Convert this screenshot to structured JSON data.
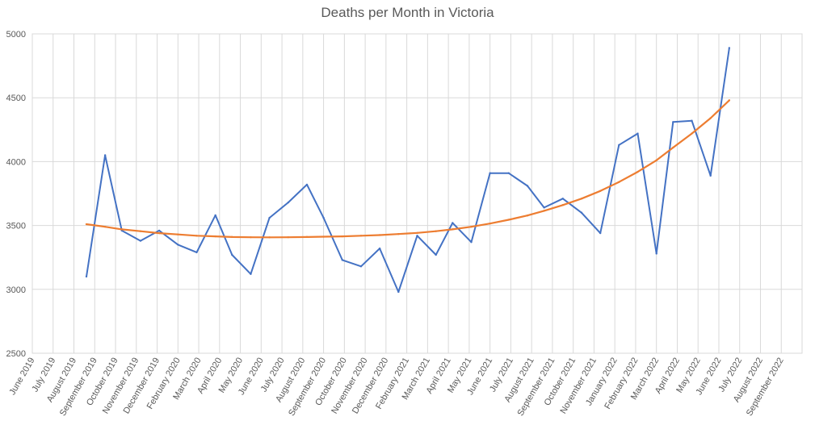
{
  "chart_data": {
    "type": "line",
    "title": "Deaths per Month in Victoria",
    "xlabel": "",
    "ylabel": "",
    "ylim": [
      2500,
      5000
    ],
    "yticks": [
      "2500",
      "3000",
      "3500",
      "4000",
      "4500",
      "5000"
    ],
    "grid": true,
    "categories": [
      "June 2019",
      "July 2019",
      "August 2019",
      "September 2019",
      "October 2019",
      "November 2019",
      "December 2019",
      "February 2020",
      "March 2020",
      "April 2020",
      "May 2020",
      "June 2020",
      "July 2020",
      "August 2020",
      "September 2020",
      "October 2020",
      "November 2020",
      "December 2020",
      "February 2021",
      "March 2021",
      "April 2021",
      "May 2021",
      "June 2021",
      "July 2021",
      "August 2021",
      "September 2021",
      "October 2021",
      "November 2021",
      "January 2022",
      "February 2022",
      "March 2022",
      "April 2022",
      "May 2022",
      "June 2022",
      "July 2022",
      "August 2022",
      "September 2022"
    ],
    "series": [
      {
        "color": "#4472C4",
        "x": [
          2.6,
          3.5,
          4.3,
          5.2,
          6.1,
          7.0,
          7.9,
          8.8,
          9.6,
          10.5,
          11.4,
          12.3,
          13.2,
          14.0,
          14.9,
          15.8,
          16.7,
          17.6,
          18.5,
          19.4,
          20.2,
          21.1,
          22.0,
          22.9,
          23.8,
          24.6,
          25.5,
          26.4,
          27.3,
          28.2,
          29.1,
          30.0,
          30.8,
          31.7,
          32.6,
          33.5,
          34.3
        ],
        "values": [
          3100,
          4050,
          3460,
          3380,
          3460,
          3350,
          3290,
          3580,
          3270,
          3120,
          3560,
          3680,
          3820,
          3560,
          3230,
          3180,
          3320,
          2980,
          3420,
          3270,
          3520,
          3370,
          3910,
          3910,
          3810,
          3640,
          3710,
          3600,
          3440,
          4130,
          4220,
          3280,
          4310,
          4320,
          3890,
          4890,
          null
        ]
      },
      {
        "color": "#ED7D31",
        "x": [
          2.6,
          3.5,
          4.3,
          5.2,
          6.1,
          7.0,
          7.9,
          8.8,
          9.6,
          10.5,
          11.4,
          12.3,
          13.2,
          14.0,
          14.9,
          15.8,
          16.7,
          17.6,
          18.5,
          19.4,
          20.2,
          21.1,
          22.0,
          22.9,
          23.8,
          24.6,
          25.5,
          26.4,
          27.3,
          28.2,
          29.1,
          30.0,
          30.8,
          31.7,
          32.6,
          33.5
        ],
        "values": [
          3510,
          3490,
          3470,
          3455,
          3440,
          3430,
          3420,
          3415,
          3410,
          3408,
          3407,
          3408,
          3410,
          3412,
          3415,
          3420,
          3425,
          3433,
          3442,
          3455,
          3470,
          3490,
          3515,
          3545,
          3578,
          3615,
          3660,
          3710,
          3770,
          3840,
          3920,
          4010,
          4110,
          4220,
          4340,
          4480
        ]
      }
    ]
  }
}
